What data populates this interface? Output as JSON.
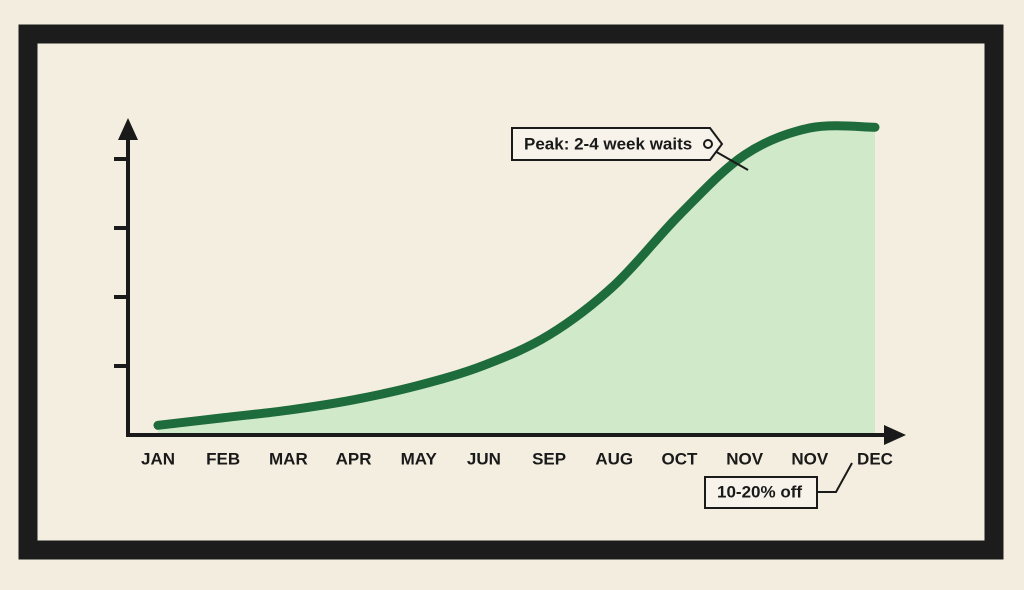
{
  "chart_data": {
    "type": "area",
    "categories": [
      "JAN",
      "FEB",
      "MAR",
      "APR",
      "MAY",
      "JUN",
      "SEP",
      "AUG",
      "OCT",
      "NOV",
      "NOV",
      "DEC"
    ],
    "values": [
      0.14,
      0.25,
      0.36,
      0.51,
      0.72,
      1.01,
      1.45,
      2.17,
      3.19,
      4.06,
      4.45,
      4.46
    ],
    "color": "#1e6b3c",
    "fill": "#cfe9c9",
    "ylim": [
      0,
      4.6
    ],
    "yticks": [
      1,
      2,
      3,
      4
    ],
    "annotations": [
      "Peak: 2-4 week waits",
      "10-20% off"
    ]
  }
}
